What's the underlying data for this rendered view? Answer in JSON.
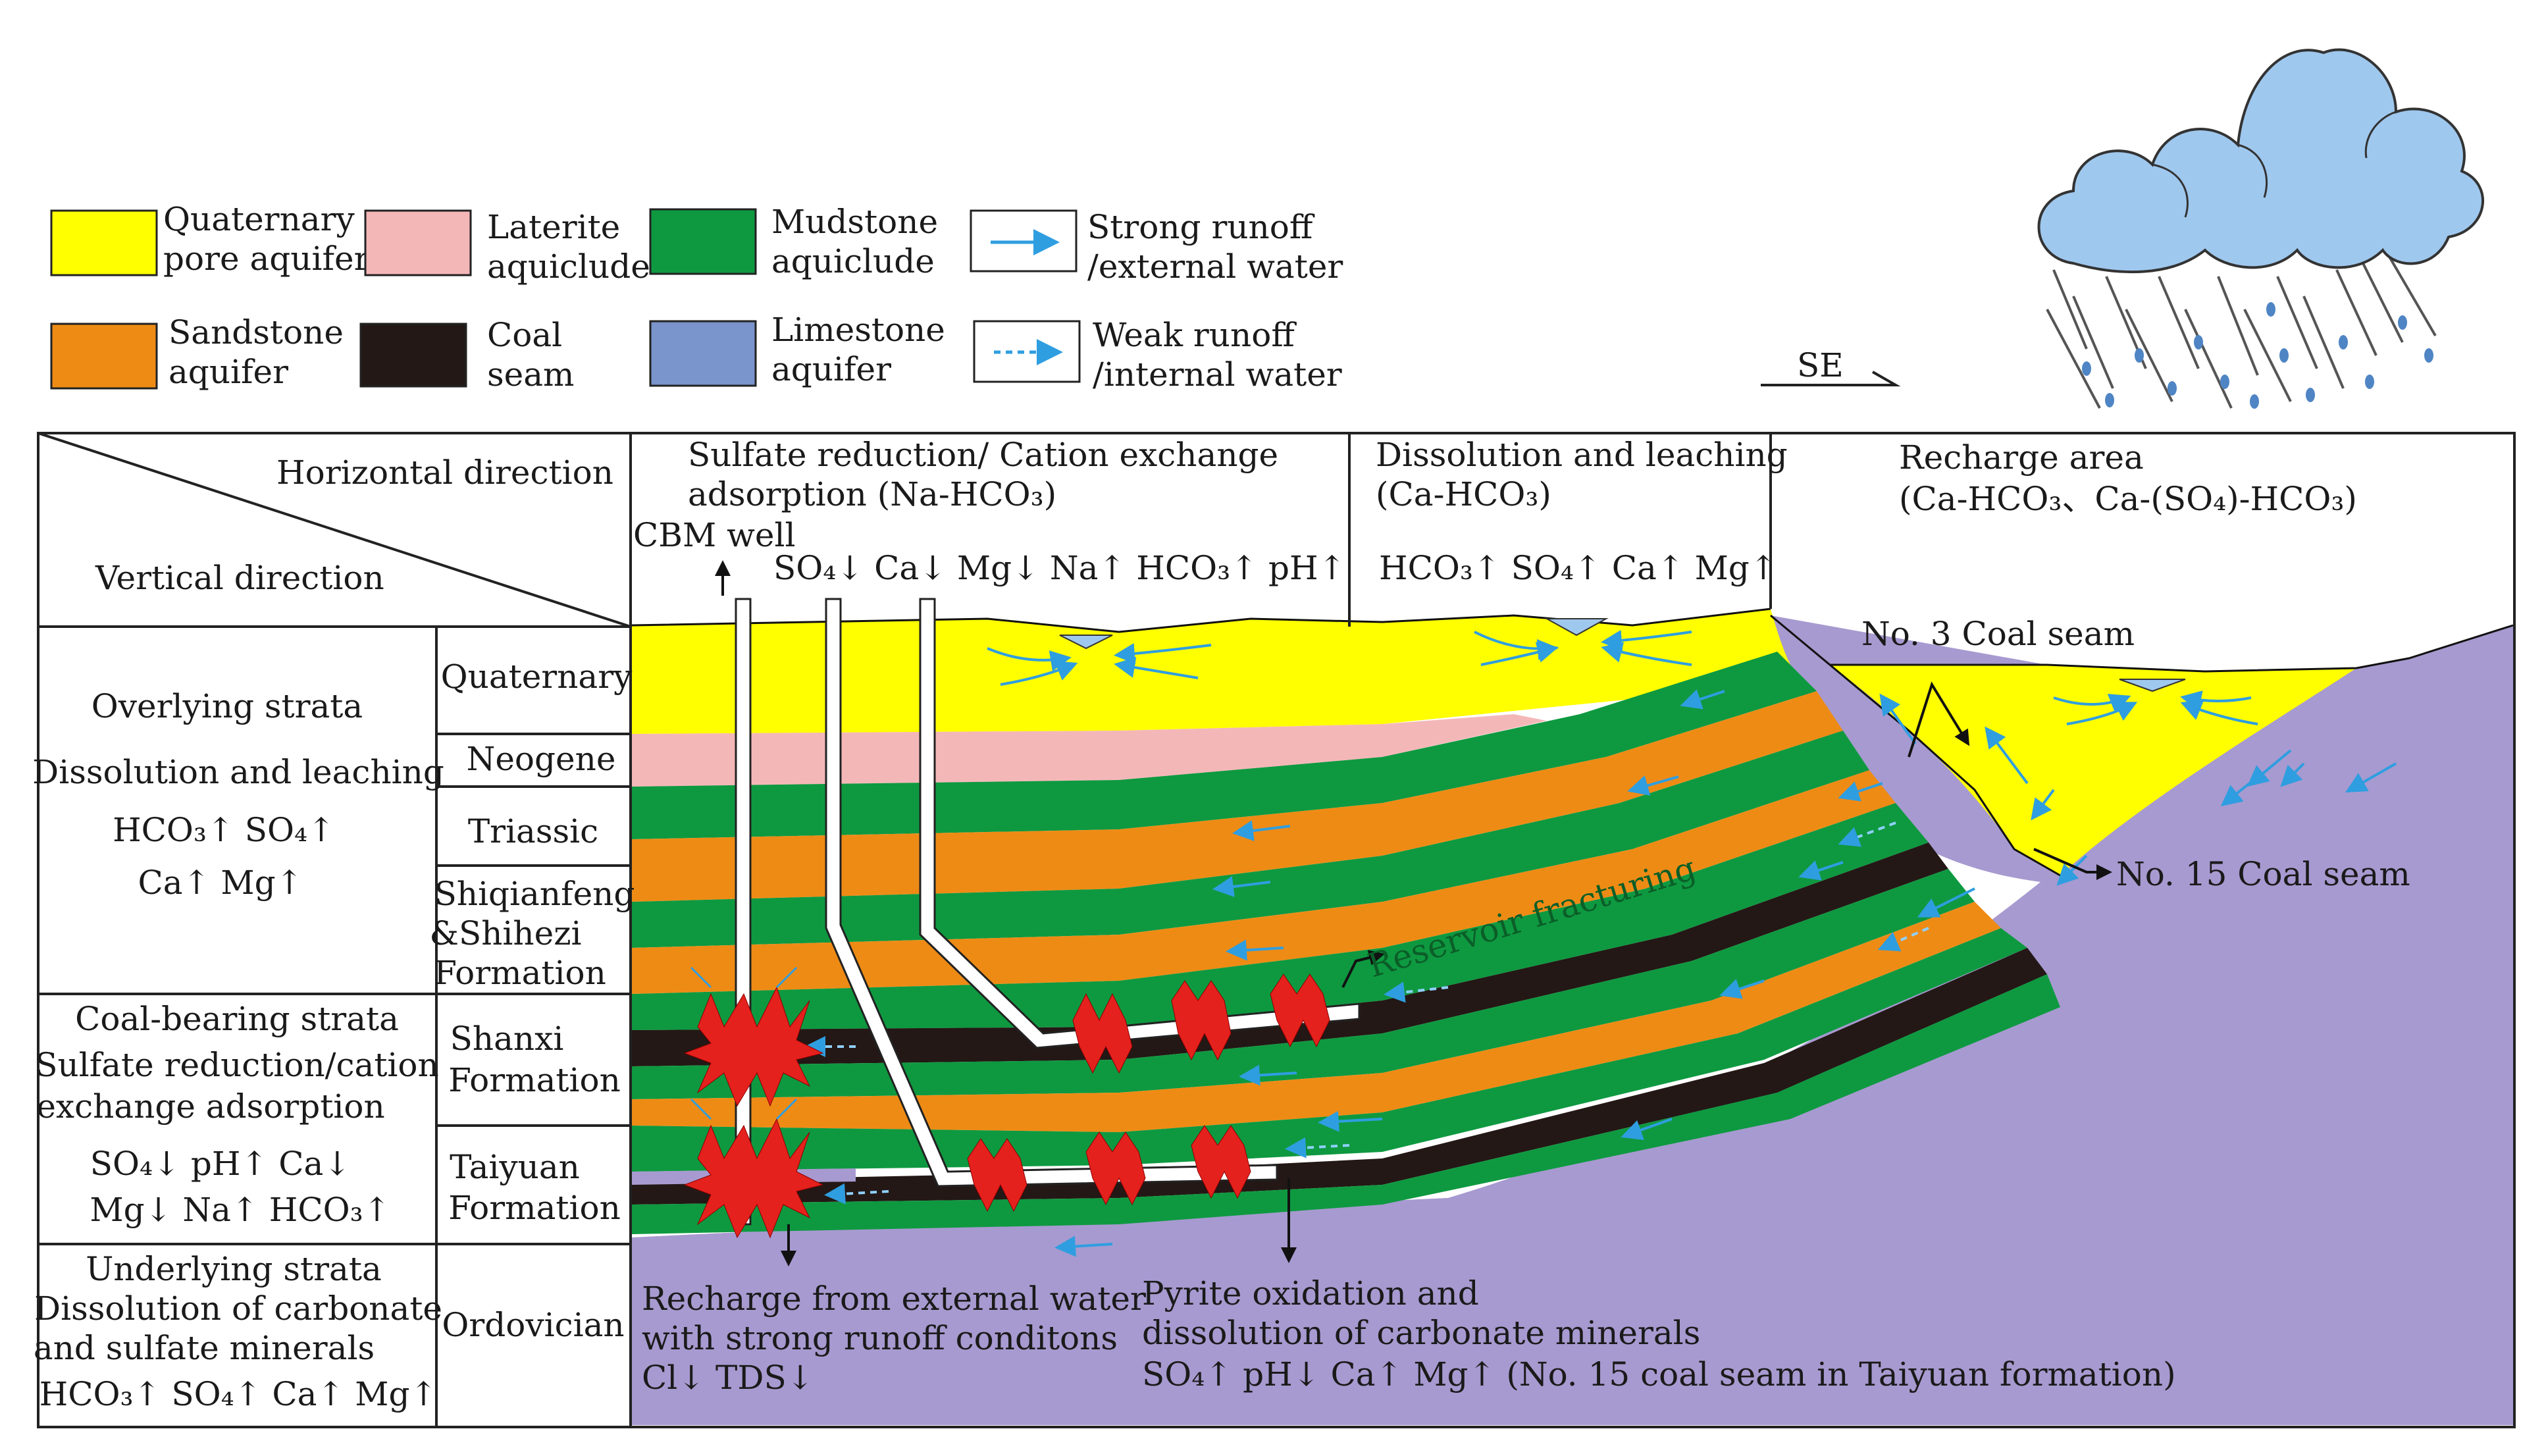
{
  "legend": {
    "quaternary": {
      "line1": "Quaternary",
      "line2": "pore aquifer",
      "color": "#ffff00"
    },
    "laterite": {
      "line1": "Laterite",
      "line2": "aquiclude",
      "color": "#f4b7b8"
    },
    "mudstone": {
      "line1": "Mudstone",
      "line2": "aquiclude",
      "color": "#0e9940"
    },
    "sandstone": {
      "line1": "Sandstone",
      "line2": "aquifer",
      "color": "#ee8b15"
    },
    "coal": {
      "line1": "Coal",
      "line2": "seam",
      "color": "#231815"
    },
    "limestone": {
      "line1": "Limestone",
      "line2": "aquifer",
      "color": "#7a94cc"
    },
    "strong_runoff": {
      "line1": "Strong runoff",
      "line2": "/external water"
    },
    "weak_runoff": {
      "line1": "Weak runoff",
      "line2": "/internal water"
    }
  },
  "direction": {
    "label": "SE"
  },
  "header": {
    "horizontal": "Horizontal direction",
    "vertical": "Vertical direction",
    "zone1": {
      "line1": "Sulfate reduction/ Cation exchange",
      "line2": "adsorption (Na-HCO₃)",
      "ions": "SO₄↓  Ca↓  Mg↓  Na↑  HCO₃↑ pH↑"
    },
    "zone2": {
      "line1": "Dissolution and leaching",
      "line2": "(Ca-HCO₃)",
      "ions": "HCO₃↑ SO₄↑ Ca↑ Mg↑"
    },
    "zone3": {
      "line1": "Recharge area",
      "line2": "(Ca-HCO₃、Ca-(SO₄)-HCO₃)"
    }
  },
  "left_table": {
    "overlying": {
      "title": "Overlying strata",
      "process": "Dissolution and leaching",
      "ions1": "HCO₃↑  SO₄↑",
      "ions2": "Ca↑  Mg↑"
    },
    "coal_bearing": {
      "title": "Coal-bearing strata",
      "process1": "Sulfate reduction/cation",
      "process2": "exchange adsorption",
      "ions1": "SO₄↓  pH↑  Ca↓",
      "ions2": "Mg↓  Na↑  HCO₃↑"
    },
    "underlying": {
      "title": "Underlying strata",
      "process1": "Dissolution of carbonate",
      "process2": "and sulfate minerals",
      "ions": "HCO₃↑ SO₄↑ Ca↑ Mg↑"
    },
    "formations": {
      "quaternary": "Quaternary",
      "neogene": "Neogene",
      "triassic": "Triassic",
      "shiqianfeng1": "Shiqianfeng",
      "shiqianfeng2": "&Shihezi",
      "shiqianfeng3": "Formation",
      "shanxi1": "Shanxi",
      "shanxi2": "Formation",
      "taiyuan1": "Taiyuan",
      "taiyuan2": "Formation",
      "ordovician": "Ordovician"
    }
  },
  "labels": {
    "cbm_well": "CBM well",
    "coal3": "No. 3 Coal seam",
    "coal15": "No. 15 Coal seam",
    "fracturing": "Reservoir fracturing",
    "recharge1": "Recharge from external water",
    "recharge2": "with strong runoff conditons",
    "recharge3": "Cl↓  TDS↓",
    "pyrite1": "Pyrite oxidation and",
    "pyrite2": "dissolution of carbonate minerals",
    "pyrite3": "SO₄↑  pH↓  Ca↑  Mg↑  (No. 15 coal seam in Taiyuan formation)"
  }
}
